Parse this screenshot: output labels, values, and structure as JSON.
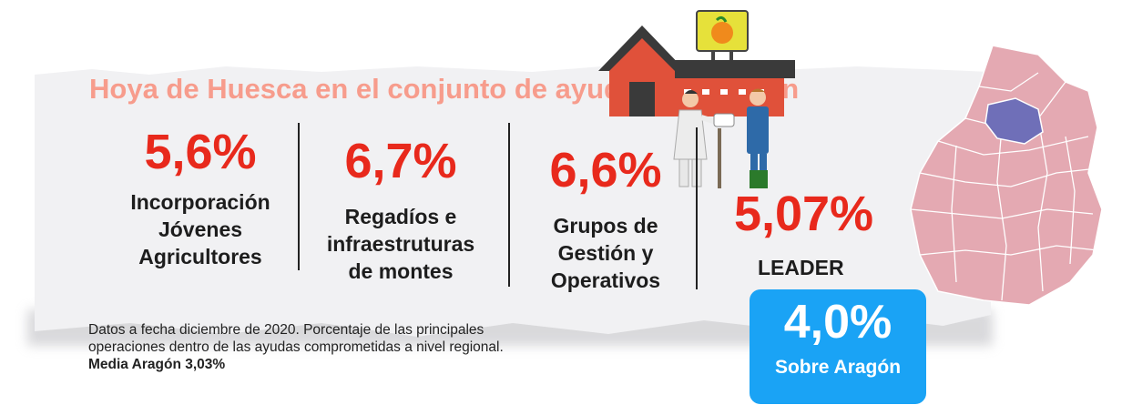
{
  "title": "Hoya de Huesca en el conjunto de ayudas de Aragón",
  "stats": [
    {
      "value": "5,6%",
      "label": "Incorporación\nJóvenes\nAgricultores"
    },
    {
      "value": "6,7%",
      "label": "Regadíos e\ninfraestruturas\nde montes"
    },
    {
      "value": "6,6%",
      "label": "Grupos de\nGestión y\nOperativos"
    },
    {
      "value": "5,07%",
      "label": "LEADER"
    }
  ],
  "footnote": {
    "text": "Datos a fecha diciembre de 2020. Porcentaje de las principales operaciones dentro de las ayudas comprometidas a nivel regional.",
    "highlight": "Media Aragón 3,03%"
  },
  "badge": {
    "value": "4,0%",
    "label": "Sobre Aragón"
  },
  "colors": {
    "accent_red": "#e8291c",
    "title_pink": "#f79c8c",
    "badge_blue": "#1aa3f5",
    "map_fill": "#e4a9b2",
    "map_highlight": "#6f6fb8"
  }
}
